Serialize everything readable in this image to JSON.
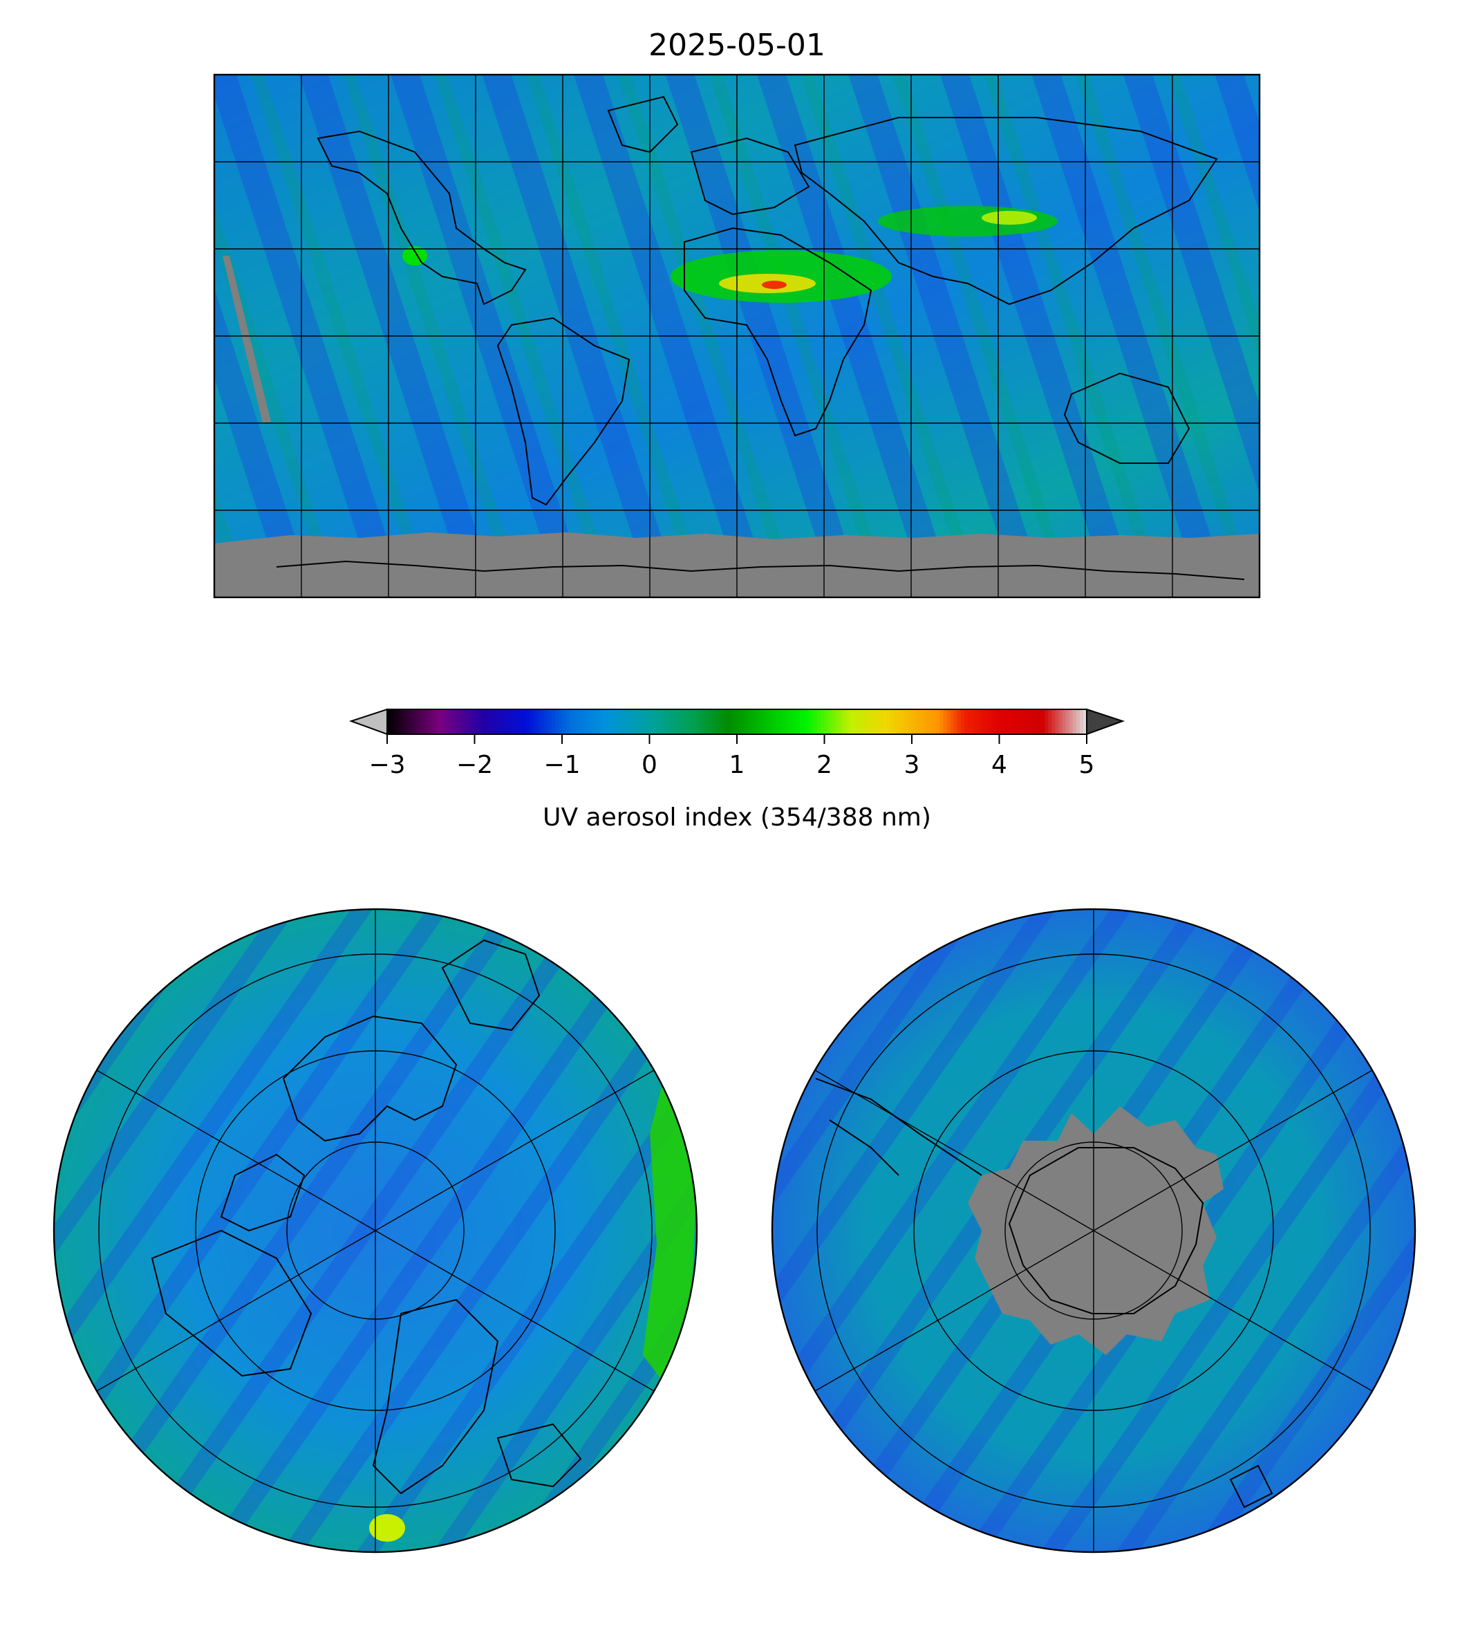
{
  "figure": {
    "title": "2025-05-01"
  },
  "colorbar": {
    "label": "UV aerosol index (354/388 nm)",
    "ticks": [
      "−3",
      "−2",
      "−1",
      "0",
      "1",
      "2",
      "3",
      "4",
      "5"
    ],
    "tick_values": [
      -3,
      -2,
      -1,
      0,
      1,
      2,
      3,
      4,
      5
    ],
    "range": [
      -3,
      5
    ],
    "extend": "both",
    "under_color": "#c0c0c0",
    "over_color": "#404040",
    "stops": [
      {
        "v": -3.0,
        "c": "#000000"
      },
      {
        "v": -2.4,
        "c": "#7a007f"
      },
      {
        "v": -1.9,
        "c": "#2200a6"
      },
      {
        "v": -1.4,
        "c": "#0010d8"
      },
      {
        "v": -0.9,
        "c": "#0070dd"
      },
      {
        "v": -0.5,
        "c": "#0092dc"
      },
      {
        "v": 0.0,
        "c": "#00a19f"
      },
      {
        "v": 0.5,
        "c": "#00a050"
      },
      {
        "v": 0.9,
        "c": "#008c00"
      },
      {
        "v": 1.5,
        "c": "#00d400"
      },
      {
        "v": 1.8,
        "c": "#00f400"
      },
      {
        "v": 2.3,
        "c": "#c0f000"
      },
      {
        "v": 2.7,
        "c": "#f0d800"
      },
      {
        "v": 3.3,
        "c": "#ff9400"
      },
      {
        "v": 3.6,
        "c": "#f02000"
      },
      {
        "v": 4.0,
        "c": "#e00000"
      },
      {
        "v": 4.5,
        "c": "#d00000"
      },
      {
        "v": 5.0,
        "c": "#e0e0e0"
      }
    ]
  },
  "maps": {
    "global": {
      "projection": "plate-carree",
      "missing_color": "#808080",
      "gridline_spacing_deg": 30
    },
    "north_polar": {
      "projection": "north-polar-stereographic",
      "gridline_spacing_deg": 30
    },
    "south_polar": {
      "projection": "south-polar-stereographic",
      "missing_color": "#808080",
      "gridline_spacing_deg": 30
    }
  }
}
